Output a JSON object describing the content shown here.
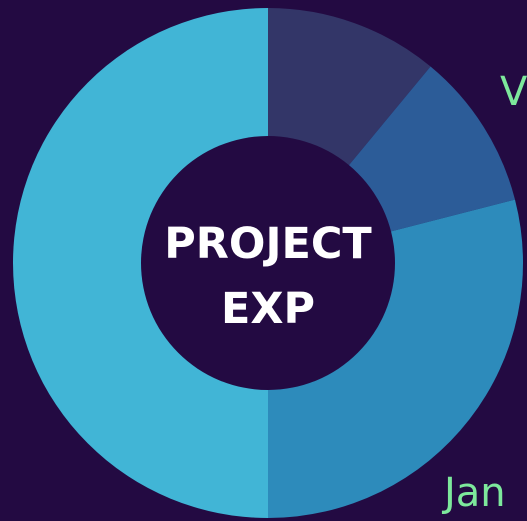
{
  "chart_data": {
    "type": "pie",
    "donut": true,
    "center_title_lines": [
      "PROJECT",
      "EXP"
    ],
    "visible_labels": [
      "V",
      "Jan"
    ],
    "slices": [
      {
        "value": 11,
        "color": "#333668"
      },
      {
        "value": 10,
        "color": "#2c5c98"
      },
      {
        "value": 29,
        "color": "#2d8bbb"
      },
      {
        "value": 50,
        "color": "#41b5d6"
      }
    ]
  },
  "colors": {
    "background": "#230a42",
    "center_text": "#ffffff",
    "label_text": "#7de89c"
  }
}
